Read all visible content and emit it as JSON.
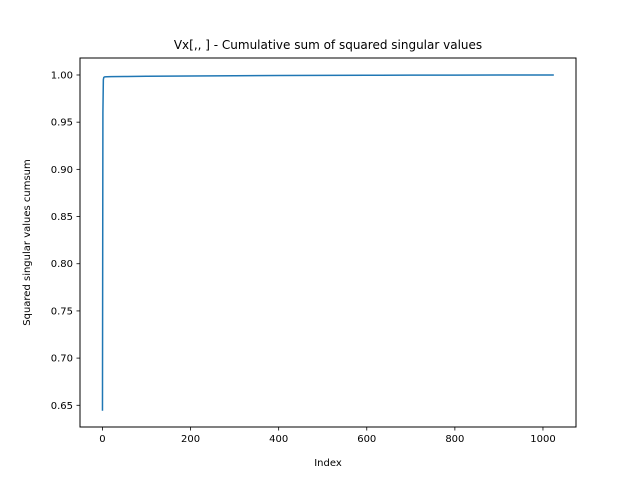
{
  "chart_data": {
    "type": "line",
    "title": "Vx[,, ] - Cumulative sum of squared singular values",
    "xlabel": "Index",
    "ylabel": "Squared singular values cumsum",
    "xlim": [
      -51,
      1075
    ],
    "ylim": [
      0.627,
      1.018
    ],
    "xticks": [
      0,
      200,
      400,
      600,
      800,
      1000
    ],
    "xtick_labels": [
      "0",
      "200",
      "400",
      "600",
      "800",
      "1000"
    ],
    "yticks": [
      0.65,
      0.7,
      0.75,
      0.8,
      0.85,
      0.9,
      0.95,
      1.0
    ],
    "ytick_labels": [
      "0.65",
      "0.70",
      "0.75",
      "0.80",
      "0.85",
      "0.90",
      "0.95",
      "1.00"
    ],
    "grid": false,
    "series": [
      {
        "color": "#1f77b4",
        "x": [
          0,
          1,
          2,
          3,
          5,
          10,
          20,
          50,
          100,
          200,
          300,
          400,
          500,
          600,
          700,
          800,
          900,
          1000,
          1023
        ],
        "y": [
          0.645,
          0.96,
          0.995,
          0.9975,
          0.998,
          0.9982,
          0.9983,
          0.9984,
          0.9986,
          0.9989,
          0.9992,
          0.9994,
          0.9996,
          0.9997,
          0.9998,
          0.9999,
          0.99995,
          0.99999,
          1.0
        ]
      }
    ]
  }
}
